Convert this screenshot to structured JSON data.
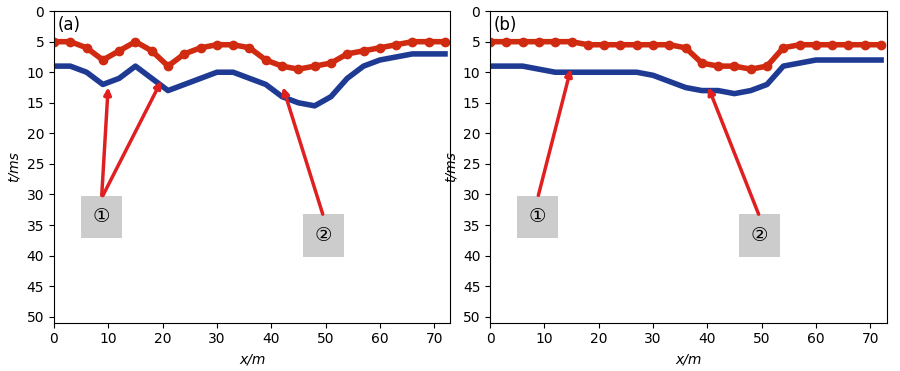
{
  "chart_data": [
    {
      "type": "line",
      "panel": "(a)",
      "x_label": "x/m",
      "y_label": "t/ms",
      "x": [
        0,
        3,
        6,
        9,
        12,
        15,
        18,
        21,
        24,
        27,
        30,
        33,
        36,
        39,
        42,
        45,
        48,
        51,
        54,
        57,
        60,
        63,
        66,
        69,
        72
      ],
      "series": [
        {
          "color": "#d02a10",
          "marker": "o",
          "line_style": "solid",
          "values": [
            5,
            5,
            6,
            8,
            6.5,
            5,
            6.5,
            9,
            7,
            6,
            5.5,
            5.5,
            6,
            8,
            9,
            9.5,
            9,
            8.5,
            7,
            6.5,
            6,
            5.5,
            5,
            5,
            5
          ]
        },
        {
          "color": "#1f3a93",
          "marker": "none",
          "line_style": "solid",
          "values": [
            9,
            9,
            10,
            12,
            11,
            9,
            11,
            13,
            12,
            11,
            10,
            10,
            11,
            12,
            14,
            15,
            15.5,
            14,
            11,
            9,
            8,
            7.5,
            7,
            7,
            7
          ]
        }
      ],
      "annotations": [
        {
          "text": "①",
          "points": [
            [
              10,
              12
            ],
            [
              20,
              11
            ]
          ]
        },
        {
          "text": "②",
          "points": [
            [
              42,
              12
            ]
          ]
        }
      ],
      "xlim": [
        0,
        73
      ],
      "ylim": [
        51,
        0
      ],
      "xticks": [
        0,
        10,
        20,
        30,
        40,
        50,
        60,
        70
      ],
      "yticks": [
        0,
        5,
        10,
        15,
        20,
        25,
        30,
        35,
        40,
        45,
        50
      ]
    },
    {
      "type": "line",
      "panel": "(b)",
      "x_label": "x/m",
      "y_label": "t/ms",
      "x": [
        0,
        3,
        6,
        9,
        12,
        15,
        18,
        21,
        24,
        27,
        30,
        33,
        36,
        39,
        42,
        45,
        48,
        51,
        54,
        57,
        60,
        63,
        66,
        69,
        72
      ],
      "series": [
        {
          "color": "#d02a10",
          "marker": "o",
          "line_style": "solid",
          "values": [
            5,
            5,
            5,
            5,
            5,
            5,
            5.5,
            5.5,
            5.5,
            5.5,
            5.5,
            5.5,
            6,
            8.5,
            9,
            9,
            9.5,
            9,
            6,
            5.5,
            5.5,
            5.5,
            5.5,
            5.5,
            5.5
          ]
        },
        {
          "color": "#1f3a93",
          "marker": "none",
          "line_style": "solid",
          "values": [
            9,
            9,
            9,
            9.5,
            10,
            10,
            10,
            10,
            10,
            10,
            10.5,
            11.5,
            12.5,
            13,
            13,
            13.5,
            13,
            12,
            9,
            8.5,
            8,
            8,
            8,
            8,
            8
          ]
        }
      ],
      "annotations": [
        {
          "text": "①",
          "points": [
            [
              15,
              9
            ]
          ]
        },
        {
          "text": "②",
          "points": [
            [
              40,
              12
            ]
          ]
        }
      ],
      "xlim": [
        0,
        73
      ],
      "ylim": [
        51,
        0
      ],
      "xticks": [
        0,
        10,
        20,
        30,
        40,
        50,
        60,
        70
      ],
      "yticks": [
        0,
        5,
        10,
        15,
        20,
        25,
        30,
        35,
        40,
        45,
        50
      ]
    }
  ]
}
